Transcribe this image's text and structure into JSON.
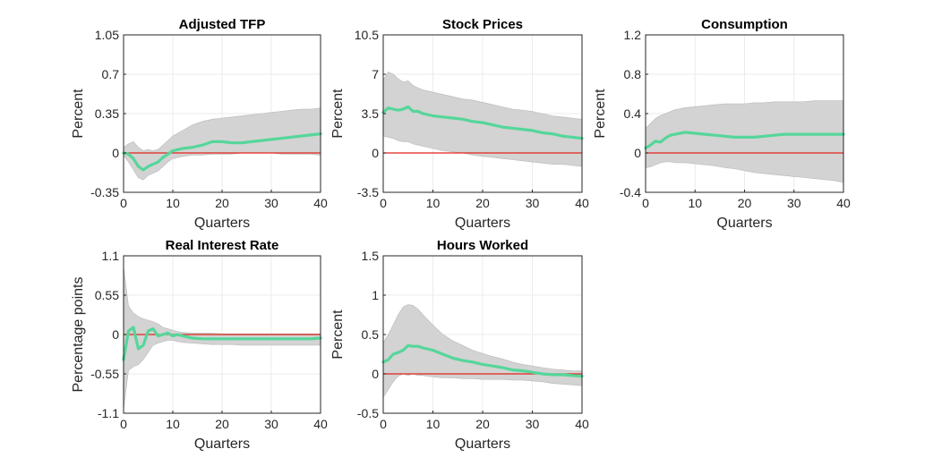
{
  "figure": {
    "colors": {
      "band": "#d3d3d3",
      "band_edge": "#b8b8b8",
      "irf": "#55d69a",
      "zero": "#e0251b",
      "axis": "#262626",
      "grid": "#ebebeb"
    }
  },
  "chart_data": [
    {
      "type": "area",
      "title": "Adjusted TFP",
      "xlabel": "Quarters",
      "ylabel": "Percent",
      "xlim": [
        0,
        40
      ],
      "ylim": [
        -0.35,
        1.05
      ],
      "xticks": [
        0,
        10,
        20,
        30,
        40
      ],
      "xtick_labels": [
        "0",
        "10",
        "20",
        "30",
        "40"
      ],
      "yticks": [
        -0.35,
        0,
        0.35,
        0.7,
        1.05
      ],
      "ytick_labels": [
        "-0.35",
        "0",
        "0.35",
        "0.7",
        "1.05"
      ],
      "grid": true,
      "zero_line": 0,
      "x": [
        0,
        1,
        2,
        3,
        4,
        5,
        6,
        7,
        8,
        9,
        10,
        12,
        14,
        16,
        18,
        20,
        22,
        24,
        26,
        28,
        30,
        32,
        34,
        36,
        38,
        40
      ],
      "median": [
        0,
        -0.01,
        -0.05,
        -0.12,
        -0.15,
        -0.12,
        -0.1,
        -0.08,
        -0.04,
        -0.01,
        0.02,
        0.04,
        0.05,
        0.07,
        0.1,
        0.1,
        0.09,
        0.09,
        0.1,
        0.11,
        0.12,
        0.13,
        0.14,
        0.15,
        0.16,
        0.17
      ],
      "upper": [
        0.05,
        0.08,
        0.1,
        0.05,
        0.02,
        0.03,
        0.02,
        0.03,
        0.07,
        0.11,
        0.15,
        0.2,
        0.25,
        0.28,
        0.3,
        0.31,
        0.32,
        0.33,
        0.34,
        0.35,
        0.36,
        0.37,
        0.38,
        0.39,
        0.39,
        0.4
      ],
      "lower": [
        -0.02,
        -0.08,
        -0.15,
        -0.22,
        -0.24,
        -0.2,
        -0.18,
        -0.16,
        -0.12,
        -0.08,
        -0.05,
        -0.03,
        -0.02,
        -0.02,
        -0.01,
        -0.01,
        -0.01,
        0,
        0,
        0,
        0,
        -0.01,
        -0.01,
        -0.01,
        -0.01,
        -0.02
      ]
    },
    {
      "type": "area",
      "title": "Stock Prices",
      "xlabel": "Quarters",
      "ylabel": "Percent",
      "xlim": [
        0,
        40
      ],
      "ylim": [
        -3.5,
        10.5
      ],
      "xticks": [
        0,
        10,
        20,
        30,
        40
      ],
      "xtick_labels": [
        "0",
        "10",
        "20",
        "30",
        "40"
      ],
      "yticks": [
        -3.5,
        0,
        3.5,
        7,
        10.5
      ],
      "ytick_labels": [
        "-3.5",
        "0",
        "3.5",
        "7",
        "10.5"
      ],
      "grid": true,
      "zero_line": 0,
      "x": [
        0,
        1,
        2,
        3,
        4,
        5,
        6,
        7,
        8,
        10,
        12,
        14,
        16,
        18,
        20,
        22,
        24,
        26,
        28,
        30,
        32,
        34,
        36,
        38,
        40
      ],
      "median": [
        3.6,
        4.0,
        3.9,
        3.8,
        3.9,
        4.1,
        3.7,
        3.7,
        3.5,
        3.3,
        3.2,
        3.1,
        3.0,
        2.8,
        2.7,
        2.5,
        2.3,
        2.2,
        2.1,
        2.0,
        1.8,
        1.7,
        1.5,
        1.4,
        1.3
      ],
      "upper": [
        6.5,
        7.2,
        7.0,
        6.6,
        6.3,
        6.4,
        6.0,
        5.8,
        5.6,
        5.4,
        5.2,
        5.0,
        4.8,
        4.7,
        4.5,
        4.3,
        4.1,
        3.9,
        3.8,
        3.7,
        3.5,
        3.3,
        3.2,
        3.1,
        3.0
      ],
      "lower": [
        1.5,
        1.4,
        1.3,
        1.1,
        1.0,
        1.0,
        0.8,
        0.7,
        0.6,
        0.4,
        0.2,
        0.1,
        0,
        -0.2,
        -0.3,
        -0.4,
        -0.5,
        -0.6,
        -0.7,
        -0.8,
        -0.9,
        -1.0,
        -1.0,
        -1.1,
        -1.2
      ]
    },
    {
      "type": "area",
      "title": "Consumption",
      "xlabel": "Quarters",
      "ylabel": "Percent",
      "xlim": [
        0,
        40
      ],
      "ylim": [
        -0.4,
        1.2
      ],
      "xticks": [
        0,
        10,
        20,
        30,
        40
      ],
      "xtick_labels": [
        "0",
        "10",
        "20",
        "30",
        "40"
      ],
      "yticks": [
        -0.4,
        0,
        0.4,
        0.8,
        1.2
      ],
      "ytick_labels": [
        "-0.4",
        "0",
        "0.4",
        "0.8",
        "1.2"
      ],
      "grid": true,
      "zero_line": 0,
      "x": [
        0,
        1,
        2,
        3,
        4,
        5,
        6,
        7,
        8,
        10,
        12,
        14,
        16,
        18,
        20,
        22,
        24,
        26,
        28,
        30,
        32,
        34,
        36,
        38,
        40
      ],
      "median": [
        0.05,
        0.08,
        0.12,
        0.11,
        0.15,
        0.18,
        0.19,
        0.2,
        0.21,
        0.2,
        0.19,
        0.18,
        0.17,
        0.16,
        0.16,
        0.16,
        0.17,
        0.18,
        0.19,
        0.19,
        0.19,
        0.19,
        0.19,
        0.19,
        0.19
      ],
      "upper": [
        0.25,
        0.3,
        0.35,
        0.38,
        0.4,
        0.42,
        0.44,
        0.45,
        0.46,
        0.47,
        0.48,
        0.49,
        0.5,
        0.5,
        0.5,
        0.51,
        0.51,
        0.52,
        0.52,
        0.52,
        0.52,
        0.53,
        0.53,
        0.53,
        0.53
      ],
      "lower": [
        -0.15,
        -0.14,
        -0.12,
        -0.1,
        -0.09,
        -0.09,
        -0.1,
        -0.1,
        -0.1,
        -0.11,
        -0.12,
        -0.13,
        -0.15,
        -0.16,
        -0.18,
        -0.2,
        -0.21,
        -0.22,
        -0.23,
        -0.24,
        -0.25,
        -0.26,
        -0.27,
        -0.28,
        -0.3
      ]
    },
    {
      "type": "area",
      "title": "Real Interest Rate",
      "xlabel": "Quarters",
      "ylabel": "Percentage points",
      "xlim": [
        0,
        40
      ],
      "ylim": [
        -1.1,
        1.1
      ],
      "xticks": [
        0,
        10,
        20,
        30,
        40
      ],
      "xtick_labels": [
        "0",
        "10",
        "20",
        "30",
        "40"
      ],
      "yticks": [
        -1.1,
        -0.55,
        0,
        0.55,
        1.1
      ],
      "ytick_labels": [
        "-1.1",
        "-0.55",
        "0",
        "0.55",
        "1.1"
      ],
      "grid": true,
      "zero_line": 0,
      "x": [
        0,
        1,
        2,
        3,
        4,
        5,
        6,
        7,
        8,
        9,
        10,
        11,
        12,
        14,
        16,
        18,
        20,
        22,
        24,
        26,
        28,
        30,
        32,
        34,
        36,
        38,
        40
      ],
      "median": [
        -0.35,
        0.05,
        0.1,
        -0.2,
        -0.15,
        0.05,
        0.08,
        -0.02,
        0,
        0.02,
        -0.02,
        0,
        -0.02,
        -0.05,
        -0.06,
        -0.06,
        -0.06,
        -0.06,
        -0.06,
        -0.06,
        -0.06,
        -0.06,
        -0.06,
        -0.06,
        -0.06,
        -0.06,
        -0.05
      ],
      "upper": [
        0.95,
        0.4,
        0.3,
        0.25,
        0.22,
        0.2,
        0.18,
        0.15,
        0.1,
        0.08,
        0.06,
        0.04,
        0.03,
        0.02,
        0.02,
        0.02,
        0.01,
        0.01,
        0.01,
        0.01,
        0.01,
        0.01,
        0.01,
        0.01,
        0.01,
        0.01,
        0.01
      ],
      "lower": [
        -1.05,
        -0.5,
        -0.45,
        -0.42,
        -0.35,
        -0.25,
        -0.15,
        -0.12,
        -0.1,
        -0.08,
        -0.08,
        -0.1,
        -0.11,
        -0.12,
        -0.13,
        -0.14,
        -0.14,
        -0.14,
        -0.15,
        -0.15,
        -0.15,
        -0.15,
        -0.15,
        -0.15,
        -0.15,
        -0.15,
        -0.15
      ]
    },
    {
      "type": "area",
      "title": "Hours Worked",
      "xlabel": "Quarters",
      "ylabel": "Percent",
      "xlim": [
        0,
        40
      ],
      "ylim": [
        -0.5,
        1.5
      ],
      "xticks": [
        0,
        10,
        20,
        30,
        40
      ],
      "xtick_labels": [
        "0",
        "10",
        "20",
        "30",
        "40"
      ],
      "yticks": [
        -0.5,
        0,
        0.5,
        1,
        1.5
      ],
      "ytick_labels": [
        "-0.5",
        "0",
        "0.5",
        "1",
        "1.5"
      ],
      "grid": true,
      "zero_line": 0,
      "x": [
        0,
        1,
        2,
        3,
        4,
        5,
        6,
        7,
        8,
        10,
        12,
        14,
        16,
        18,
        20,
        22,
        24,
        26,
        28,
        30,
        32,
        34,
        36,
        38,
        40
      ],
      "median": [
        0.15,
        0.18,
        0.25,
        0.27,
        0.3,
        0.36,
        0.35,
        0.35,
        0.33,
        0.3,
        0.25,
        0.2,
        0.17,
        0.15,
        0.12,
        0.1,
        0.08,
        0.05,
        0.04,
        0.02,
        0,
        -0.01,
        -0.01,
        -0.02,
        -0.03
      ],
      "upper": [
        0.4,
        0.5,
        0.62,
        0.75,
        0.85,
        0.88,
        0.87,
        0.82,
        0.75,
        0.62,
        0.5,
        0.42,
        0.36,
        0.3,
        0.26,
        0.22,
        0.19,
        0.15,
        0.12,
        0.1,
        0.08,
        0.06,
        0.05,
        0.04,
        0.04
      ],
      "lower": [
        -0.3,
        -0.2,
        -0.1,
        -0.03,
        0,
        -0.02,
        0,
        -0.02,
        -0.02,
        -0.04,
        -0.05,
        -0.05,
        -0.06,
        -0.06,
        -0.07,
        -0.07,
        -0.07,
        -0.08,
        -0.08,
        -0.09,
        -0.1,
        -0.12,
        -0.13,
        -0.14,
        -0.15
      ]
    }
  ]
}
